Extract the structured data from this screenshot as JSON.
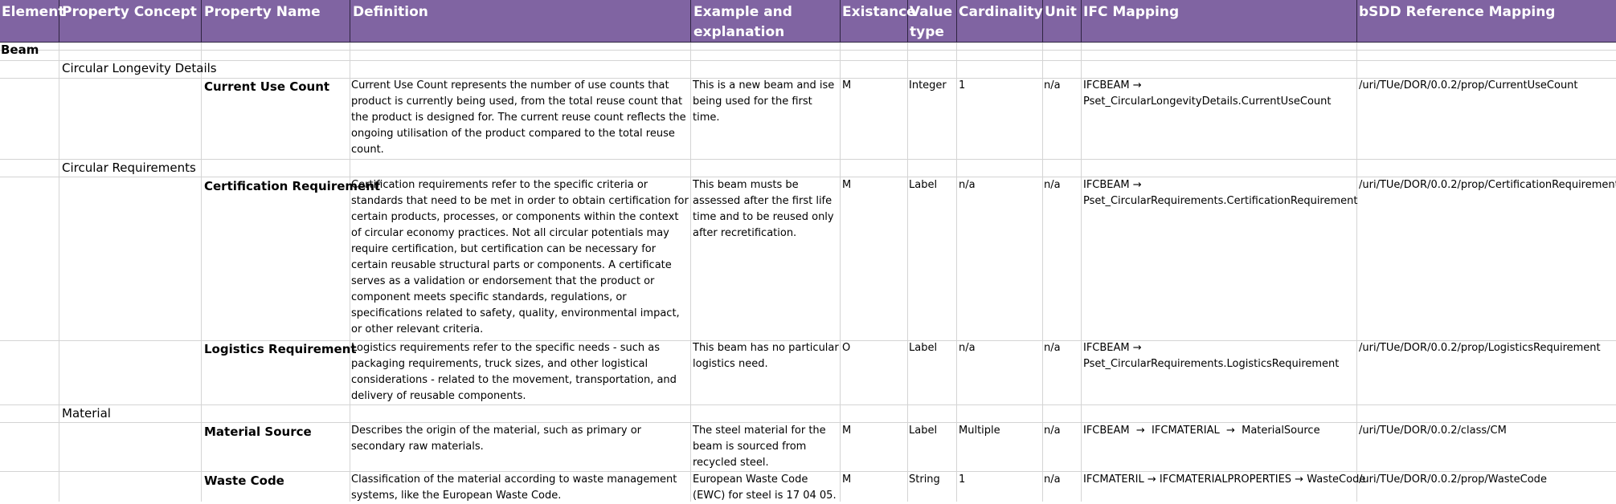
{
  "headers": {
    "element": "Element",
    "property_concept": "Property Concept",
    "property_name": "Property Name",
    "definition": "Definition",
    "example": "Example and\nexplanation",
    "existance": "Existance",
    "value_type": "Value\ntype",
    "cardinality": "Cardinality",
    "unit": "Unit",
    "ifc_mapping": "IFC Mapping",
    "bsdd_mapping": "bSDD Reference Mapping"
  },
  "element": "Beam",
  "groups": {
    "circular_longevity": "Circular Longevity Details",
    "circular_requirements": "Circular Requirements",
    "material": "Material"
  },
  "rows": {
    "current_use_count": {
      "name": "Current Use Count",
      "definition": "Current Use Count represents the number of use counts that product is currently being used, from the total reuse count that the product is designed for. The current reuse count reflects the ongoing utilisation of the product compared to the total reuse count.",
      "example": "This is a new beam and ise being used for the first time.",
      "existance": "M",
      "value_type": "Integer",
      "cardinality": "1",
      "unit": "n/a",
      "ifc_line1": "IFCBEAM →",
      "ifc_line2": "Pset_CircularLongevityDetails.CurrentUseCount",
      "bsdd": "/uri/TUe/DOR/0.0.2/prop/CurrentUseCount"
    },
    "certification_requirement": {
      "name": "Certification Requirement",
      "definition": "Certification requirements refer to the specific criteria or standards that need to be met in order to obtain certification for certain products, processes, or components within the context of circular economy practices. Not all circular potentials may require certification, but certification can be necessary for certain reusable structural parts or components. A certificate serves as a validation or endorsement that the product or component meets specific standards, regulations, or specifications related to safety, quality, environmental impact, or other relevant criteria.",
      "example": "This beam musts be assessed after the first life time and to be reused only after recretification.",
      "existance": "M",
      "value_type": "Label",
      "cardinality": "n/a",
      "unit": "n/a",
      "ifc_line1": "IFCBEAM →",
      "ifc_line2": "Pset_CircularRequirements.CertificationRequirement",
      "bsdd": "/uri/TUe/DOR/0.0.2/prop/CertificationRequirement"
    },
    "logistics_requirement": {
      "name": "Logistics Requirement",
      "definition": "Logistics requirements refer to the specific needs - such as packaging requirements, truck sizes, and other logistical considerations - related to the movement, transportation, and delivery of reusable components.",
      "example": "This beam has no particular logistics need.",
      "existance": "O",
      "value_type": "Label",
      "cardinality": "n/a",
      "unit": "n/a",
      "ifc_line1": "IFCBEAM →",
      "ifc_line2": "Pset_CircularRequirements.LogisticsRequirement",
      "bsdd": "/uri/TUe/DOR/0.0.2/prop/LogisticsRequirement"
    },
    "material_source": {
      "name": "Material Source",
      "definition": "Describes the origin of the material, such as primary or secondary raw materials.",
      "example": "The steel material for the beam is sourced from recycled steel.",
      "existance": "M",
      "value_type": "Label",
      "cardinality": "Multiple",
      "unit": "n/a",
      "ifc_line1": "IFCBEAM  →  IFCMATERIAL  →  MaterialSource",
      "bsdd": "/uri/TUe/DOR/0.0.2/class/CM"
    },
    "waste_code": {
      "name": "Waste Code",
      "definition": "Classification of the material according to waste management systems, like the European Waste Code.",
      "example": "European Waste Code (EWC) for steel is 17 04 05.",
      "existance": "M",
      "value_type": "String",
      "cardinality": "1",
      "unit": "n/a",
      "ifc_line1": "IFCMATERIL → IFCMATERIALPROPERTIES → WasteCode",
      "bsdd": "/uri/TUe/DOR/0.0.2/prop/WasteCode"
    }
  }
}
